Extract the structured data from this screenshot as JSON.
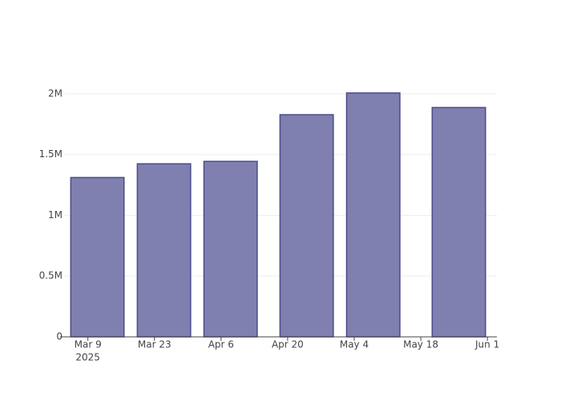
{
  "chart_data": {
    "type": "bar",
    "x": [
      "2025-03-11",
      "2025-03-25",
      "2025-04-08",
      "2025-04-24",
      "2025-05-08",
      "2025-05-26"
    ],
    "values": [
      1311000,
      1424000,
      1444000,
      1828000,
      2007000,
      1887000
    ],
    "color": "#7f7fb0",
    "edge_color": "#4b4b8a",
    "xlim": [
      "2025-03-04",
      "2025-06-03"
    ],
    "xticks": [
      {
        "value": "2025-03-09",
        "label": "Mar 9"
      },
      {
        "value": "2025-03-23",
        "label": "Mar 23"
      },
      {
        "value": "2025-04-06",
        "label": "Apr 6"
      },
      {
        "value": "2025-04-20",
        "label": "Apr 20"
      },
      {
        "value": "2025-05-04",
        "label": "May 4"
      },
      {
        "value": "2025-05-18",
        "label": "May 18"
      },
      {
        "value": "2025-06-01",
        "label": "Jun 1"
      }
    ],
    "xtick_year": "2025",
    "ylim": [
      0,
      2112000
    ],
    "yticks": [
      0,
      {
        "value": 500000,
        "label": "0.5M"
      },
      {
        "value": 1000000,
        "label": "1M"
      },
      {
        "value": 1500000,
        "label": "1.5M"
      },
      {
        "value": 2000000,
        "label": "2M"
      }
    ],
    "grid": true
  }
}
